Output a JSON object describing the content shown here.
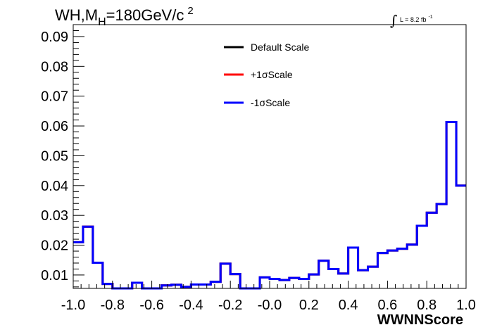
{
  "chart_data": {
    "type": "line",
    "title": {
      "pre": "WH,M",
      "sub": "H",
      "mid": "=180GeV/c",
      "sup": "2"
    },
    "luminosity": {
      "integral": "∫",
      "text": "L = 8.2 fb",
      "sup": "-1"
    },
    "xlabel": "WWNNScore",
    "ylabel": "",
    "xlim": [
      -1.0,
      1.0
    ],
    "ylim": [
      0.0055,
      0.094
    ],
    "x_ticks": [
      -1.0,
      -0.8,
      -0.6,
      -0.4,
      -0.2,
      0.0,
      0.2,
      0.4,
      0.6,
      0.8,
      1.0
    ],
    "x_tick_labels": [
      "-1.0",
      "-0.8",
      "-0.6",
      "-0.4",
      "-0.2",
      "-0.0",
      "0.2",
      "0.4",
      "0.6",
      "0.8",
      "1.0"
    ],
    "y_ticks": [
      0.01,
      0.02,
      0.03,
      0.04,
      0.05,
      0.06,
      0.07,
      0.08,
      0.09
    ],
    "y_tick_labels": [
      "0.01",
      "0.02",
      "0.03",
      "0.04",
      "0.05",
      "0.06",
      "0.07",
      "0.08",
      "0.09"
    ],
    "bin_edges": [
      -1.0,
      -0.95,
      -0.9,
      -0.85,
      -0.8,
      -0.75,
      -0.7,
      -0.65,
      -0.6,
      -0.55,
      -0.5,
      -0.45,
      -0.4,
      -0.35,
      -0.3,
      -0.25,
      -0.2,
      -0.15,
      -0.1,
      -0.05,
      0.0,
      0.05,
      0.1,
      0.15,
      0.2,
      0.25,
      0.3,
      0.35,
      0.4,
      0.45,
      0.5,
      0.55,
      0.6,
      0.65,
      0.7,
      0.75,
      0.8,
      0.85,
      0.9,
      0.95,
      1.0
    ],
    "series": [
      {
        "name": "Default Scale",
        "color": "#000000",
        "values": [
          0.021,
          0.0262,
          0.0141,
          0.007,
          0.0055,
          0.0055,
          0.0074,
          0.0055,
          0.0055,
          0.0065,
          0.0067,
          0.006,
          0.0068,
          0.0068,
          0.0077,
          0.0138,
          0.0103,
          0.0055,
          0.0055,
          0.0092,
          0.0087,
          0.0083,
          0.009,
          0.0087,
          0.0102,
          0.0148,
          0.012,
          0.0105,
          0.0192,
          0.0116,
          0.0128,
          0.0174,
          0.0182,
          0.0188,
          0.0202,
          0.0265,
          0.0309,
          0.0338,
          0.0613,
          0.04
        ]
      },
      {
        "name": "+1σScale",
        "color": "#ff0000",
        "values": [
          0.021,
          0.0262,
          0.0141,
          0.007,
          0.0055,
          0.0055,
          0.0074,
          0.0055,
          0.0055,
          0.0065,
          0.0067,
          0.006,
          0.0068,
          0.0068,
          0.0077,
          0.0138,
          0.0103,
          0.0055,
          0.0055,
          0.0092,
          0.0087,
          0.0083,
          0.009,
          0.0087,
          0.0102,
          0.0148,
          0.012,
          0.0105,
          0.0192,
          0.0116,
          0.0128,
          0.0174,
          0.0182,
          0.0188,
          0.0202,
          0.0265,
          0.0309,
          0.0338,
          0.0613,
          0.04
        ]
      },
      {
        "name": "-1σScale",
        "color": "#0000ff",
        "values": [
          0.021,
          0.0262,
          0.0141,
          0.007,
          0.0055,
          0.0055,
          0.0074,
          0.0055,
          0.0055,
          0.0065,
          0.0067,
          0.006,
          0.0068,
          0.0068,
          0.0077,
          0.0138,
          0.0103,
          0.0055,
          0.0055,
          0.0092,
          0.0087,
          0.0083,
          0.009,
          0.0087,
          0.0102,
          0.0148,
          0.012,
          0.0105,
          0.0192,
          0.0116,
          0.0128,
          0.0174,
          0.0182,
          0.0188,
          0.0202,
          0.0265,
          0.0309,
          0.0338,
          0.0613,
          0.04
        ]
      }
    ],
    "legend_position": "top-center",
    "grid": false
  }
}
